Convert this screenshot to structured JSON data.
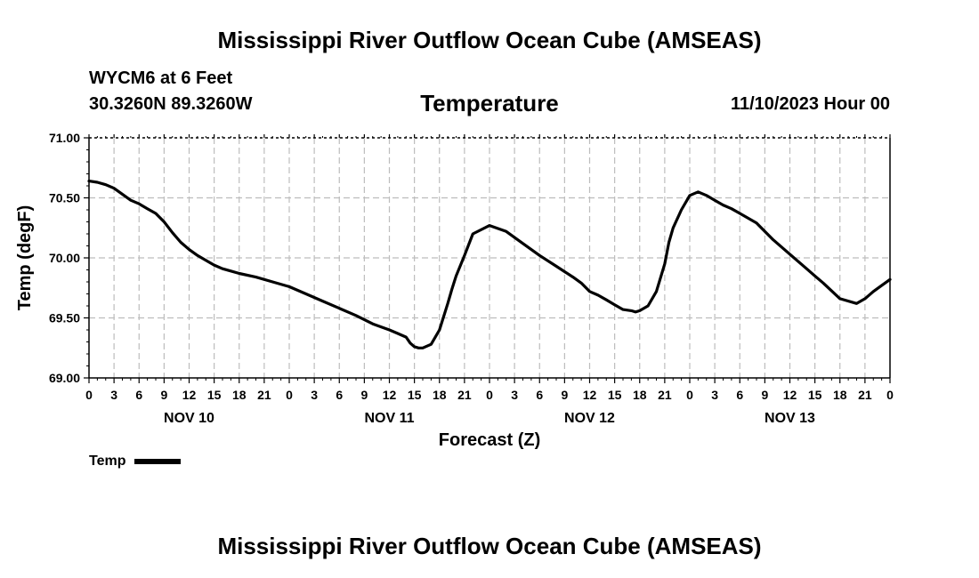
{
  "page": {
    "title": "Mississippi River Outflow Ocean Cube (AMSEAS)",
    "footer_title": "Mississippi River Outflow Ocean Cube (AMSEAS)",
    "station": "WYCM6 at 6 Feet",
    "coords": "30.3260N  89.3260W",
    "variable": "Temperature",
    "run_time": "11/10/2023 Hour 00"
  },
  "chart_data": {
    "type": "line",
    "title": "Temperature",
    "xlabel": "Forecast (Z)",
    "ylabel": "Temp (degF)",
    "ylim": [
      69.0,
      71.0
    ],
    "yticks": [
      "69.00",
      "69.50",
      "70.00",
      "70.50",
      "71.00"
    ],
    "xlim_hours": [
      0,
      96
    ],
    "xtick_step_hours": 3,
    "xtick_labels": [
      "0",
      "3",
      "6",
      "9",
      "12",
      "15",
      "18",
      "21",
      "0",
      "3",
      "6",
      "9",
      "12",
      "15",
      "18",
      "21",
      "0",
      "3",
      "6",
      "9",
      "12",
      "15",
      "18",
      "21",
      "0",
      "3",
      "6",
      "9",
      "12",
      "15",
      "18",
      "21",
      "0"
    ],
    "day_labels": [
      {
        "label": "NOV 10",
        "hour": 12
      },
      {
        "label": "NOV 11",
        "hour": 36
      },
      {
        "label": "NOV 12",
        "hour": 60
      },
      {
        "label": "NOV 13",
        "hour": 84
      }
    ],
    "grid": true,
    "legend_position": "bottom-left",
    "series": [
      {
        "name": "Temp",
        "color": "#000000",
        "x": [
          0,
          1,
          2,
          3,
          4,
          5,
          6,
          7,
          8,
          9,
          10,
          11,
          12,
          13,
          14,
          15,
          16,
          17,
          18,
          20,
          22,
          24,
          26,
          28,
          30,
          32,
          34,
          36,
          37,
          38,
          38.5,
          39,
          39.5,
          40,
          41,
          42,
          43,
          43.5,
          44,
          45,
          46,
          48,
          50,
          52,
          54,
          56,
          58,
          59,
          60,
          61,
          62,
          63,
          64,
          65,
          65.5,
          66,
          67,
          68,
          69,
          69.5,
          70,
          71,
          72,
          73,
          74,
          75,
          76,
          77,
          78,
          80,
          82,
          84,
          85,
          86,
          87,
          88,
          90,
          92,
          93,
          94,
          95,
          96
        ],
        "values": [
          70.64,
          70.63,
          70.61,
          70.58,
          70.53,
          70.48,
          70.45,
          70.41,
          70.37,
          70.3,
          70.21,
          70.13,
          70.07,
          70.02,
          69.98,
          69.94,
          69.91,
          69.89,
          69.87,
          69.84,
          69.8,
          69.76,
          69.7,
          69.64,
          69.58,
          69.52,
          69.45,
          69.4,
          69.37,
          69.34,
          69.29,
          69.26,
          69.25,
          69.25,
          69.28,
          69.4,
          69.62,
          69.74,
          69.85,
          70.02,
          70.2,
          70.27,
          70.22,
          70.12,
          70.02,
          69.93,
          69.84,
          69.79,
          69.72,
          69.69,
          69.65,
          69.61,
          69.57,
          69.56,
          69.55,
          69.56,
          69.6,
          69.72,
          69.95,
          70.13,
          70.25,
          70.4,
          70.52,
          70.55,
          70.52,
          70.48,
          70.44,
          70.41,
          70.37,
          70.29,
          70.15,
          70.03,
          69.97,
          69.91,
          69.85,
          69.79,
          69.66,
          69.62,
          69.66,
          69.72,
          69.77,
          69.82
        ]
      }
    ]
  },
  "legend": {
    "label": "Temp"
  }
}
